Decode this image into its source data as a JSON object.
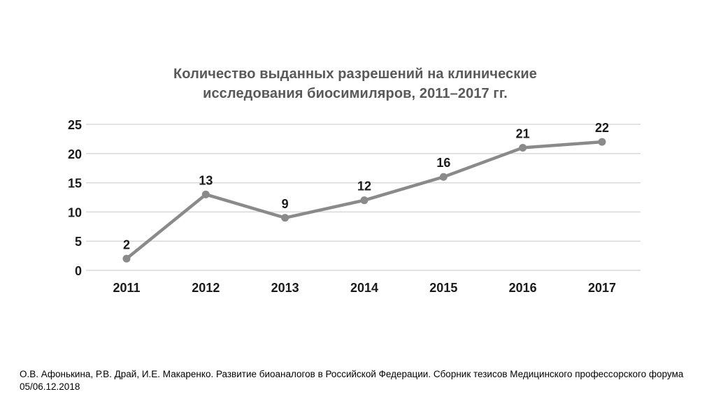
{
  "header": {
    "title_line1": "Количество выданных разрешений на клинические",
    "title_line2": "исследования биосимиляров, 2011–2017 гг."
  },
  "chart_data": {
    "type": "line",
    "title": "Количество выданных разрешений на клинические исследования биосимиляров, 2011–2017 гг.",
    "categories": [
      "2011",
      "2012",
      "2013",
      "2014",
      "2015",
      "2016",
      "2017"
    ],
    "values": [
      2,
      13,
      9,
      12,
      16,
      21,
      22
    ],
    "xlabel": "",
    "ylabel": "",
    "ylim": [
      0,
      25
    ],
    "yticks": [
      0,
      5,
      10,
      15,
      20,
      25
    ],
    "grid": "horizontal",
    "legend": "none",
    "data_labels_shown": true,
    "colors": {
      "line": "#8a8a8a",
      "marker": "#8a8a8a",
      "gridline": "#d9d9d9",
      "tick_label": "#1a1a1a",
      "data_label": "#1a1a1a",
      "title": "#595959"
    }
  },
  "footer": {
    "line1": "О.В. Афонькина, Р.В. Драй, И.Е. Макаренко. Развитие биоаналогов в Российской Федерации. Сборник тезисов Медицинского профессорского форума",
    "line2": "05/06.12.2018"
  }
}
